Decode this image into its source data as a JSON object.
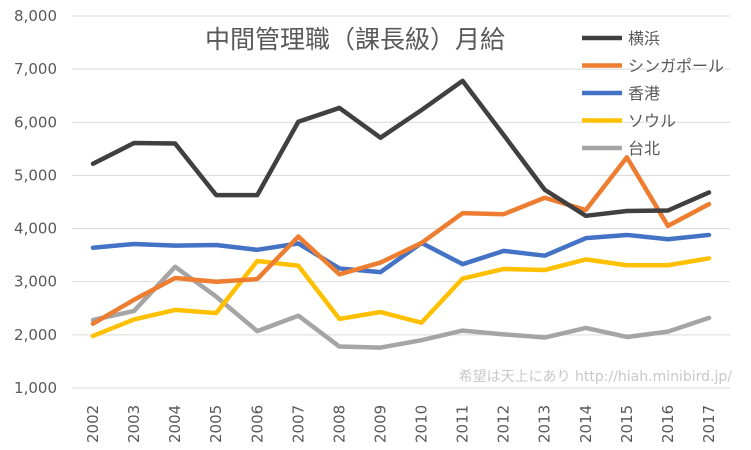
{
  "chart_data": {
    "type": "line",
    "title": "中間管理職（課長級）月給",
    "xlabel": "",
    "ylabel": "",
    "categories": [
      "2002",
      "2003",
      "2004",
      "2005",
      "2006",
      "2007",
      "2008",
      "2009",
      "2010",
      "2011",
      "2012",
      "2013",
      "2014",
      "2015",
      "2016",
      "2017"
    ],
    "ylim": [
      1000,
      8000
    ],
    "yticks": [
      1000,
      2000,
      3000,
      4000,
      5000,
      6000,
      7000,
      8000
    ],
    "ytick_labels": [
      "1,000",
      "2,000",
      "3,000",
      "4,000",
      "5,000",
      "6,000",
      "7,000",
      "8,000"
    ],
    "grid": true,
    "legend_position": "top-right",
    "series": [
      {
        "name": "横浜",
        "color": "#404040",
        "values": [
          5220,
          5610,
          5600,
          4630,
          4630,
          6010,
          6270,
          5710,
          6230,
          6780,
          5760,
          4730,
          4240,
          4330,
          4340,
          4680
        ]
      },
      {
        "name": "シンガポール",
        "color": "#ed7d31",
        "values": [
          2210,
          2660,
          3070,
          3000,
          3050,
          3850,
          3140,
          3360,
          3730,
          4290,
          4270,
          4580,
          4350,
          5340,
          4050,
          4460
        ]
      },
      {
        "name": "香港",
        "color": "#4472c4",
        "values": [
          3640,
          3710,
          3680,
          3690,
          3600,
          3720,
          3250,
          3180,
          3730,
          3330,
          3580,
          3490,
          3820,
          3880,
          3800,
          3880
        ]
      },
      {
        "name": "ソウル",
        "color": "#ffc000",
        "values": [
          1980,
          2290,
          2470,
          2410,
          3390,
          3300,
          2300,
          2430,
          2230,
          3060,
          3240,
          3220,
          3420,
          3310,
          3310,
          3440
        ]
      },
      {
        "name": "台北",
        "color": "#a5a5a5",
        "values": [
          2280,
          2450,
          3280,
          2720,
          2070,
          2360,
          1780,
          1760,
          1900,
          2080,
          2010,
          1950,
          2130,
          1960,
          2060,
          2320
        ]
      }
    ]
  },
  "watermark": "希望は天上にあり http://hiah.minibird.jp/"
}
